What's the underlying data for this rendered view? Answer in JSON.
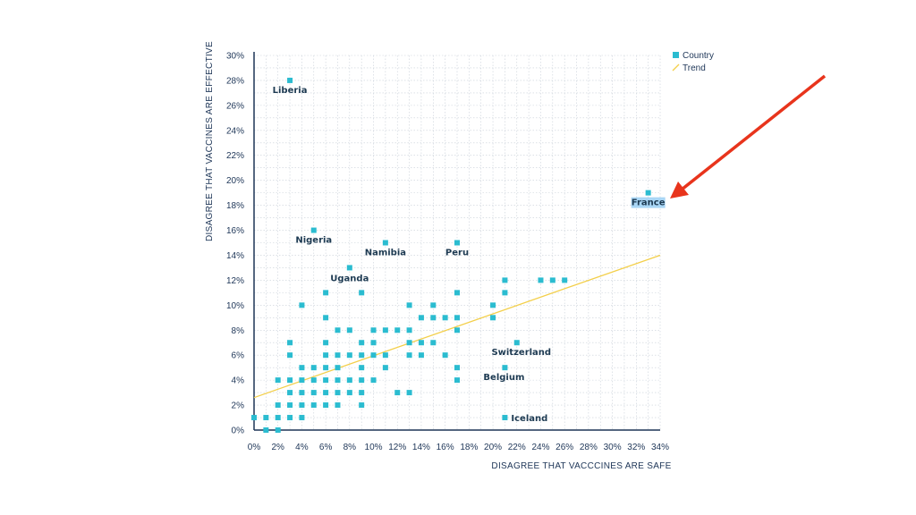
{
  "chart_data": {
    "type": "scatter",
    "xlabel": "DISAGREE THAT VACCCINES ARE SAFE",
    "ylabel": "DISAGREE THAT VACCINES ARE EFFECTIVE",
    "xlim": [
      0,
      34
    ],
    "ylim": [
      0,
      30
    ],
    "x_ticks": [
      "0%",
      "2%",
      "4%",
      "6%",
      "8%",
      "10%",
      "12%",
      "14%",
      "16%",
      "18%",
      "20%",
      "22%",
      "24%",
      "26%",
      "28%",
      "30%",
      "32%",
      "34%"
    ],
    "y_ticks": [
      "0%",
      "2%",
      "4%",
      "6%",
      "8%",
      "10%",
      "12%",
      "14%",
      "16%",
      "18%",
      "20%",
      "22%",
      "24%",
      "26%",
      "28%",
      "30%"
    ],
    "grid": true,
    "legend": {
      "placement": "top-right",
      "entries": [
        {
          "label": "Country",
          "marker": "square",
          "color": "#2bbcd0"
        },
        {
          "label": "Trend",
          "marker": "line",
          "color": "#f3cf4a"
        }
      ]
    },
    "colors": {
      "points": "#2bbcd0",
      "trend": "#f3cf4a",
      "axis": "#1d3557",
      "grid": "#c8cfd8",
      "arrow": "#e8341c",
      "highlight": "#a9d6f5"
    },
    "trend": {
      "x": [
        0,
        34
      ],
      "y": [
        2.6,
        14
      ]
    },
    "labeled_points": [
      {
        "name": "Liberia",
        "x": 3,
        "y": 28
      },
      {
        "name": "Nigeria",
        "x": 5,
        "y": 16
      },
      {
        "name": "Namibia",
        "x": 11,
        "y": 15
      },
      {
        "name": "Peru",
        "x": 17,
        "y": 15
      },
      {
        "name": "Uganda",
        "x": 8,
        "y": 13
      },
      {
        "name": "France",
        "x": 33,
        "y": 19,
        "highlighted": true
      },
      {
        "name": "Switzerland",
        "x": 22,
        "y": 7
      },
      {
        "name": "Belgium",
        "x": 21,
        "y": 5
      },
      {
        "name": "Iceland",
        "x": 21,
        "y": 1
      }
    ],
    "points": [
      [
        0,
        1
      ],
      [
        1,
        1
      ],
      [
        1,
        0
      ],
      [
        2,
        0
      ],
      [
        2,
        1
      ],
      [
        2,
        2
      ],
      [
        2,
        4
      ],
      [
        3,
        1
      ],
      [
        3,
        2
      ],
      [
        3,
        3
      ],
      [
        3,
        4
      ],
      [
        3,
        6
      ],
      [
        3,
        7
      ],
      [
        4,
        1
      ],
      [
        4,
        2
      ],
      [
        4,
        3
      ],
      [
        4,
        4
      ],
      [
        4,
        5
      ],
      [
        4,
        10
      ],
      [
        5,
        2
      ],
      [
        5,
        3
      ],
      [
        5,
        4
      ],
      [
        5,
        5
      ],
      [
        6,
        2
      ],
      [
        6,
        3
      ],
      [
        6,
        4
      ],
      [
        6,
        5
      ],
      [
        6,
        6
      ],
      [
        6,
        7
      ],
      [
        6,
        9
      ],
      [
        6,
        11
      ],
      [
        7,
        2
      ],
      [
        7,
        3
      ],
      [
        7,
        4
      ],
      [
        7,
        5
      ],
      [
        7,
        6
      ],
      [
        7,
        8
      ],
      [
        8,
        3
      ],
      [
        8,
        4
      ],
      [
        8,
        6
      ],
      [
        8,
        8
      ],
      [
        9,
        2
      ],
      [
        9,
        3
      ],
      [
        9,
        4
      ],
      [
        9,
        5
      ],
      [
        9,
        6
      ],
      [
        9,
        7
      ],
      [
        9,
        11
      ],
      [
        10,
        4
      ],
      [
        10,
        6
      ],
      [
        10,
        7
      ],
      [
        10,
        8
      ],
      [
        11,
        5
      ],
      [
        11,
        6
      ],
      [
        11,
        8
      ],
      [
        12,
        3
      ],
      [
        12,
        8
      ],
      [
        13,
        3
      ],
      [
        13,
        6
      ],
      [
        13,
        7
      ],
      [
        13,
        8
      ],
      [
        13,
        10
      ],
      [
        14,
        6
      ],
      [
        14,
        7
      ],
      [
        14,
        9
      ],
      [
        15,
        7
      ],
      [
        15,
        9
      ],
      [
        15,
        10
      ],
      [
        16,
        6
      ],
      [
        16,
        9
      ],
      [
        17,
        4
      ],
      [
        17,
        5
      ],
      [
        17,
        8
      ],
      [
        17,
        9
      ],
      [
        17,
        11
      ],
      [
        20,
        9
      ],
      [
        20,
        10
      ],
      [
        21,
        11
      ],
      [
        21,
        12
      ],
      [
        24,
        12
      ],
      [
        25,
        12
      ],
      [
        26,
        12
      ]
    ]
  },
  "annotation": {
    "type": "arrow",
    "target": "France"
  }
}
